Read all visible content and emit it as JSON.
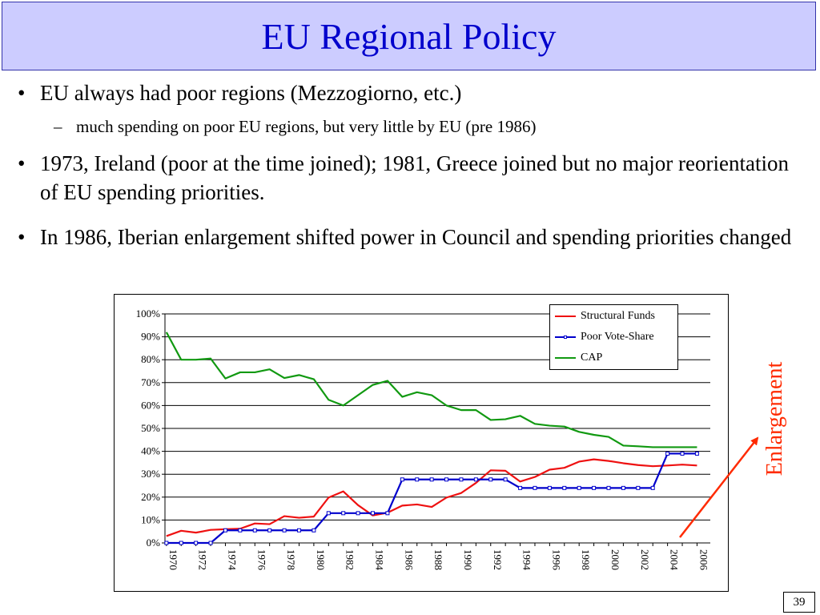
{
  "slide": {
    "title": "EU Regional Policy",
    "bullets": [
      {
        "level": 1,
        "marker": "•",
        "text": "EU always had poor regions (Mezzogiorno, etc.)"
      },
      {
        "level": 2,
        "marker": "–",
        "text": "much spending on poor EU regions, but very little by EU (pre 1986)"
      },
      {
        "level": 1,
        "marker": "•",
        "text": "1973, Ireland (poor at the time joined); 1981, Greece joined but no major reorientation of EU spending priorities."
      },
      {
        "level": 1,
        "marker": "•",
        "text": "In 1986, Iberian enlargement shifted power in Council and spending priorities changed"
      }
    ],
    "annotation": "Enlargement",
    "page_number": "39",
    "colors": {
      "title_bg": "#ccccff",
      "title_text": "#0000cc",
      "annotation": "#ff2a00"
    }
  },
  "chart_data": {
    "type": "line",
    "title": "",
    "xlabel": "",
    "ylabel": "",
    "ylim": [
      0,
      1
    ],
    "y_ticks": [
      "0%",
      "10%",
      "20%",
      "30%",
      "40%",
      "50%",
      "60%",
      "70%",
      "80%",
      "90%",
      "100%"
    ],
    "x_tick_labels": [
      "1970",
      "1972",
      "1974",
      "1976",
      "1978",
      "1980",
      "1982",
      "1984",
      "1986",
      "1988",
      "1990",
      "1992",
      "1994",
      "1996",
      "1998",
      "2000",
      "2002",
      "2004",
      "2006"
    ],
    "x": [
      1970,
      1971,
      1972,
      1973,
      1974,
      1975,
      1976,
      1977,
      1978,
      1979,
      1980,
      1981,
      1982,
      1983,
      1984,
      1985,
      1986,
      1987,
      1988,
      1989,
      1990,
      1991,
      1992,
      1993,
      1994,
      1995,
      1996,
      1997,
      1998,
      1999,
      2000,
      2001,
      2002,
      2003,
      2004,
      2005,
      2006
    ],
    "grid": true,
    "legend_position": "top-right",
    "series": [
      {
        "name": "Structural Funds",
        "color": "#ee1111",
        "marker": "none",
        "values": [
          0.03,
          0.053,
          0.045,
          0.057,
          0.06,
          0.062,
          0.085,
          0.082,
          0.117,
          0.11,
          0.115,
          0.198,
          0.225,
          0.165,
          0.12,
          0.132,
          0.163,
          0.168,
          0.157,
          0.198,
          0.218,
          0.262,
          0.317,
          0.315,
          0.268,
          0.288,
          0.32,
          0.328,
          0.355,
          0.365,
          0.358,
          0.348,
          0.34,
          0.335,
          0.338,
          0.342,
          0.338
        ]
      },
      {
        "name": "Poor Vote-Share",
        "color": "#0000cc",
        "marker": "square",
        "values": [
          0.0,
          0.0,
          0.0,
          0.0,
          0.055,
          0.055,
          0.055,
          0.055,
          0.055,
          0.055,
          0.055,
          0.13,
          0.13,
          0.13,
          0.13,
          0.13,
          0.277,
          0.277,
          0.277,
          0.277,
          0.277,
          0.277,
          0.277,
          0.277,
          0.24,
          0.24,
          0.24,
          0.24,
          0.24,
          0.24,
          0.24,
          0.24,
          0.24,
          0.24,
          0.39,
          0.39,
          0.39
        ]
      },
      {
        "name": "CAP",
        "color": "#119911",
        "marker": "none",
        "values": [
          0.92,
          0.8,
          0.8,
          0.805,
          0.718,
          0.745,
          0.745,
          0.758,
          0.72,
          0.733,
          0.715,
          0.625,
          0.6,
          0.645,
          0.69,
          0.708,
          0.638,
          0.658,
          0.645,
          0.6,
          0.58,
          0.58,
          0.537,
          0.54,
          0.555,
          0.52,
          0.512,
          0.508,
          0.485,
          0.472,
          0.463,
          0.425,
          0.422,
          0.418,
          0.418,
          0.418,
          0.418
        ]
      }
    ]
  }
}
